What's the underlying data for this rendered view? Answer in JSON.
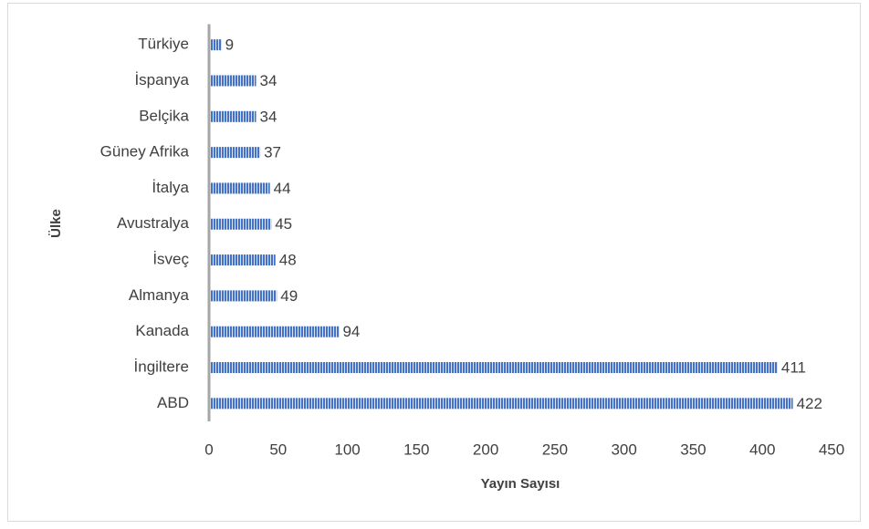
{
  "chart_data": {
    "type": "bar",
    "orientation": "horizontal",
    "x_label": "Yayın Sayısı",
    "y_label": "Ülke",
    "categories": [
      "Türkiye",
      "İspanya",
      "Belçika",
      "Güney Afrika",
      "İtalya",
      "Avustralya",
      "İsveç",
      "Almanya",
      "Kanada",
      "İngiltere",
      "ABD"
    ],
    "values": [
      9,
      34,
      34,
      37,
      44,
      45,
      48,
      49,
      94,
      411,
      422
    ],
    "color": "#4472c4",
    "xlim": [
      0,
      450
    ],
    "xticks": [
      0,
      50,
      100,
      150,
      200,
      250,
      300,
      350,
      400,
      450
    ],
    "grid": false
  }
}
